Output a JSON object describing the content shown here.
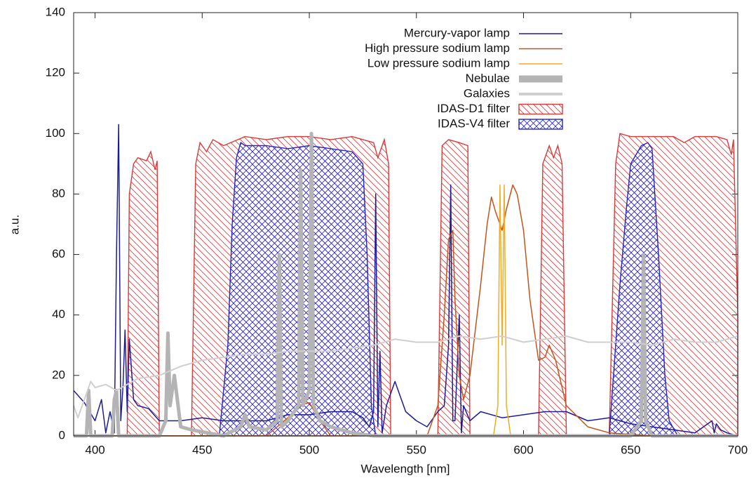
{
  "chart_data": {
    "type": "line",
    "xlabel": "Wavelength [nm]",
    "ylabel": "a.u.",
    "xlim": [
      390,
      700
    ],
    "xticks": [
      400,
      450,
      500,
      550,
      600,
      650,
      700
    ],
    "ylim": [
      0,
      140
    ],
    "yticks": [
      0,
      20,
      40,
      60,
      80,
      100,
      120,
      140
    ],
    "legend": "top-center",
    "series": [
      {
        "name": "Mercury-vapor lamp",
        "color": "#1c1c9a",
        "x": [
          390,
          395,
          400,
          403,
          405,
          407,
          409,
          410,
          411,
          412,
          413,
          414,
          415,
          416,
          418,
          420,
          425,
          430,
          440,
          450,
          460,
          470,
          480,
          490,
          500,
          510,
          520,
          525,
          528,
          530,
          531,
          532,
          533,
          534,
          536,
          540,
          545,
          550,
          555,
          560,
          563,
          565,
          566,
          567,
          568,
          570,
          571,
          572,
          575,
          580,
          590,
          600,
          610,
          620,
          630,
          640,
          650,
          660,
          670,
          680,
          688,
          689,
          690,
          692,
          695,
          700
        ],
        "values": [
          15,
          11,
          5,
          12,
          1,
          8,
          1,
          60,
          103,
          5,
          16,
          35,
          8,
          32,
          12,
          10,
          9,
          5,
          5,
          6,
          5,
          5,
          5,
          7,
          7,
          8,
          8,
          6,
          3,
          8,
          80,
          3,
          28,
          1,
          10,
          18,
          8,
          5,
          3,
          8,
          10,
          30,
          83,
          5,
          5,
          40,
          1,
          10,
          5,
          8,
          6,
          7,
          8,
          8,
          5,
          6,
          4,
          3,
          2,
          1,
          5,
          1,
          4,
          2,
          1,
          0
        ]
      },
      {
        "name": "High pressure sodium lamp",
        "color": "#c4541a",
        "x": [
          390,
          480,
          490,
          495,
          500,
          505,
          510,
          555,
          560,
          563,
          565,
          567,
          568,
          570,
          572,
          575,
          580,
          583,
          585,
          587,
          590,
          592,
          595,
          597,
          600,
          603,
          607,
          610,
          612,
          615,
          620,
          630,
          640,
          660,
          700
        ],
        "values": [
          0,
          0,
          6,
          10,
          11,
          5,
          0,
          0,
          10,
          40,
          65,
          68,
          45,
          20,
          12,
          20,
          50,
          70,
          79,
          74,
          68,
          75,
          83,
          80,
          68,
          45,
          25,
          26,
          30,
          25,
          10,
          3,
          1,
          0,
          0
        ]
      },
      {
        "name": "Low pressure sodium lamp",
        "color": "#f0ac22",
        "x": [
          390,
          586,
          588,
          589,
          590,
          591,
          592,
          594,
          700
        ],
        "values": [
          0,
          0,
          10,
          83,
          30,
          83,
          10,
          0,
          0
        ]
      },
      {
        "name": "Nebulae",
        "color": "#b4b4b4",
        "width": 5,
        "x": [
          390,
          396,
          397,
          398,
          408,
          409,
          410,
          411,
          430,
          433,
          434,
          435,
          437,
          440,
          445,
          460,
          468,
          470,
          472,
          480,
          485,
          486,
          487,
          490,
          495,
          496,
          497,
          500,
          501,
          502,
          505,
          510,
          520,
          530,
          540,
          650,
          655,
          656,
          657,
          660,
          700
        ],
        "values": [
          0,
          0,
          15,
          0,
          0,
          12,
          15,
          0,
          0,
          5,
          34,
          10,
          20,
          3,
          2,
          0,
          3,
          7,
          3,
          2,
          5,
          60,
          3,
          5,
          10,
          88,
          10,
          15,
          100,
          10,
          5,
          3,
          1,
          0,
          0,
          0,
          5,
          60,
          5,
          0,
          0
        ]
      },
      {
        "name": "Galaxies",
        "color": "#cfcfcf",
        "width": 2,
        "x": [
          390,
          392,
          395,
          398,
          400,
          405,
          410,
          415,
          420,
          430,
          440,
          450,
          460,
          470,
          480,
          490,
          500,
          510,
          520,
          530,
          540,
          550,
          560,
          570,
          580,
          590,
          600,
          610,
          620,
          630,
          640,
          650,
          660,
          670,
          680,
          690,
          700
        ],
        "values": [
          10,
          6,
          12,
          18,
          16,
          17,
          15,
          17,
          19,
          20,
          23,
          25,
          26,
          27,
          27,
          28,
          28,
          28,
          29,
          30,
          32,
          31,
          31,
          33,
          32,
          33,
          31,
          32,
          33,
          31,
          31,
          31,
          30,
          32,
          31,
          31,
          33
        ]
      },
      {
        "name": "IDAS-D1 filter",
        "color": "#d83a3a",
        "fill": "hatch",
        "x": [
          390,
          415,
          416,
          418,
          420,
          424,
          426,
          428,
          429,
          430,
          445,
          447,
          449,
          452,
          455,
          460,
          470,
          480,
          490,
          500,
          510,
          520,
          530,
          532,
          535,
          537,
          538,
          560,
          562,
          565,
          570,
          574,
          575,
          607,
          609,
          612,
          614,
          616,
          618,
          620,
          640,
          643,
          645,
          650,
          660,
          670,
          675,
          680,
          690,
          695,
          697,
          698,
          700
        ],
        "values": [
          0,
          0,
          80,
          90,
          92,
          91,
          94,
          88,
          91,
          0,
          0,
          90,
          97,
          94,
          98,
          96,
          99,
          98,
          99,
          99,
          98,
          99,
          97,
          92,
          98,
          90,
          0,
          0,
          96,
          98,
          97,
          96,
          0,
          0,
          90,
          96,
          92,
          96,
          90,
          0,
          0,
          90,
          100,
          99,
          99,
          99,
          97,
          99,
          99,
          98,
          93,
          98,
          40
        ]
      },
      {
        "name": "IDAS-V4 filter",
        "color": "#2424c8",
        "fill": "crosshatch",
        "x": [
          390,
          458,
          462,
          464,
          466,
          468,
          470,
          480,
          490,
          500,
          510,
          520,
          525,
          527,
          529,
          531,
          640,
          645,
          648,
          650,
          655,
          658,
          660,
          663,
          666,
          668,
          672,
          700
        ],
        "values": [
          0,
          0,
          30,
          70,
          92,
          97,
          96,
          96,
          95,
          96,
          95,
          94,
          90,
          60,
          10,
          0,
          0,
          50,
          75,
          90,
          96,
          97,
          95,
          60,
          20,
          5,
          0,
          0
        ]
      }
    ]
  }
}
